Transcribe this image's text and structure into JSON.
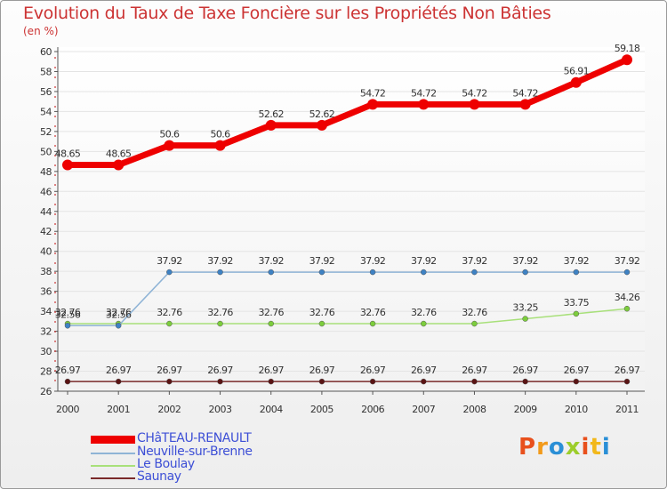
{
  "header": {
    "title": "Evolution du Taux de Taxe Foncière sur les Propriétés Non Bâties",
    "unit": "(en %)"
  },
  "logo": {
    "text": "Proxiti",
    "letters": [
      "P",
      "r",
      "o",
      "x",
      "i",
      "t",
      "i"
    ],
    "colors": [
      "#e8501c",
      "#f29a1a",
      "#2a8fd6",
      "#9ccd2b",
      "#e8501c",
      "#f2b81a",
      "#2a8fd6"
    ]
  },
  "chart_data": {
    "type": "line",
    "title": "Evolution du Taux de Taxe Foncière sur les Propriétés Non Bâties",
    "ylabel": "(en %)",
    "xlabel": "",
    "x": [
      "2000",
      "2001",
      "2002",
      "2003",
      "2004",
      "2005",
      "2006",
      "2007",
      "2008",
      "2009",
      "2010",
      "2011"
    ],
    "ylim": [
      26,
      60
    ],
    "yticks": [
      26,
      28,
      30,
      32,
      34,
      36,
      38,
      40,
      42,
      44,
      46,
      48,
      50,
      52,
      54,
      56,
      58,
      60
    ],
    "legend_position": "bottom-left",
    "series": [
      {
        "name": "CHâTEAU-RENAULT",
        "color": "#ee0000",
        "values": [
          48.65,
          48.65,
          50.6,
          50.6,
          52.62,
          52.62,
          54.72,
          54.72,
          54.72,
          54.72,
          56.91,
          59.18
        ],
        "labels": [
          "48.65",
          "48.65",
          "50.6",
          "50.6",
          "52.62",
          "52.62",
          "54.72",
          "54.72",
          "54.72",
          "54.72",
          "56.91",
          "59.18"
        ]
      },
      {
        "name": "Neuville-sur-Brenne",
        "color": "#8fb4d6",
        "marker": "#3e82c4",
        "values": [
          32.56,
          32.56,
          37.92,
          37.92,
          37.92,
          37.92,
          37.92,
          37.92,
          37.92,
          37.92,
          37.92,
          37.92
        ],
        "labels": [
          "32.56",
          "32.56",
          "37.92",
          "37.92",
          "37.92",
          "37.92",
          "37.92",
          "37.92",
          "37.92",
          "37.92",
          "37.92",
          "37.92"
        ]
      },
      {
        "name": "Le Boulay",
        "color": "#a8e07a",
        "marker": "#7ccd3c",
        "values": [
          32.76,
          32.76,
          32.76,
          32.76,
          32.76,
          32.76,
          32.76,
          32.76,
          32.76,
          33.25,
          33.75,
          34.26
        ],
        "labels": [
          "32.76",
          "32.76",
          "32.76",
          "32.76",
          "32.76",
          "32.76",
          "32.76",
          "32.76",
          "32.76",
          "33.25",
          "33.75",
          "34.26"
        ]
      },
      {
        "name": "Saunay",
        "color": "#7a2a2a",
        "marker": "#5a1414",
        "values": [
          26.97,
          26.97,
          26.97,
          26.97,
          26.97,
          26.97,
          26.97,
          26.97,
          26.97,
          26.97,
          26.97,
          26.97
        ],
        "labels": [
          "26.97",
          "26.97",
          "26.97",
          "26.97",
          "26.97",
          "26.97",
          "26.97",
          "26.97",
          "26.97",
          "26.97",
          "26.97",
          "26.97"
        ]
      }
    ]
  }
}
